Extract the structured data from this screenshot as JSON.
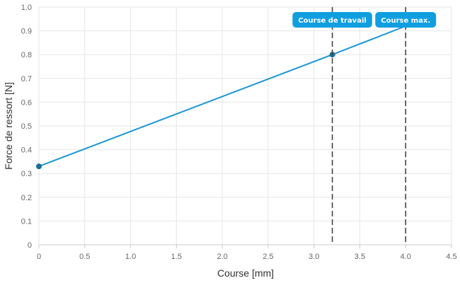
{
  "chart_data": {
    "type": "line",
    "xlabel": "Course [mm]",
    "ylabel": "Force de ressort [N]",
    "xlim": [
      0,
      4.5
    ],
    "ylim": [
      0,
      1.0
    ],
    "x_ticks": [
      0,
      0.5,
      1.0,
      1.5,
      2.0,
      2.5,
      3.0,
      3.5,
      4.0,
      4.5
    ],
    "x_tick_labels": [
      "0",
      "0.5",
      "1.0",
      "1.5",
      "2.0",
      "2.5",
      "3.0",
      "3.5",
      "4.0",
      "4.5"
    ],
    "y_ticks": [
      0,
      0.1,
      0.2,
      0.3,
      0.4,
      0.5,
      0.6,
      0.7,
      0.8,
      0.9,
      1.0
    ],
    "y_tick_labels": [
      "0",
      "0.1",
      "0.2",
      "0.3",
      "0.4",
      "0.5",
      "0.6",
      "0.7",
      "0.8",
      "0.9",
      "1.0"
    ],
    "grid": true,
    "series": [
      {
        "color": "#1a96d4",
        "points": [
          {
            "x": 0,
            "y": 0.33,
            "marker": true
          },
          {
            "x": 3.2,
            "y": 0.8,
            "marker": true
          },
          {
            "x": 4.0,
            "y": 0.92,
            "marker": false
          }
        ]
      }
    ],
    "annotations": [
      {
        "x": 3.2,
        "label": "Course de travail",
        "color": "#0f9ee0"
      },
      {
        "x": 4.0,
        "label": "Course max.",
        "color": "#0f9ee0"
      }
    ],
    "colors": {
      "grid": "#e6e6e6",
      "axis": "#cccccc",
      "marker": "#1b6e96",
      "refline": "#444444"
    }
  }
}
